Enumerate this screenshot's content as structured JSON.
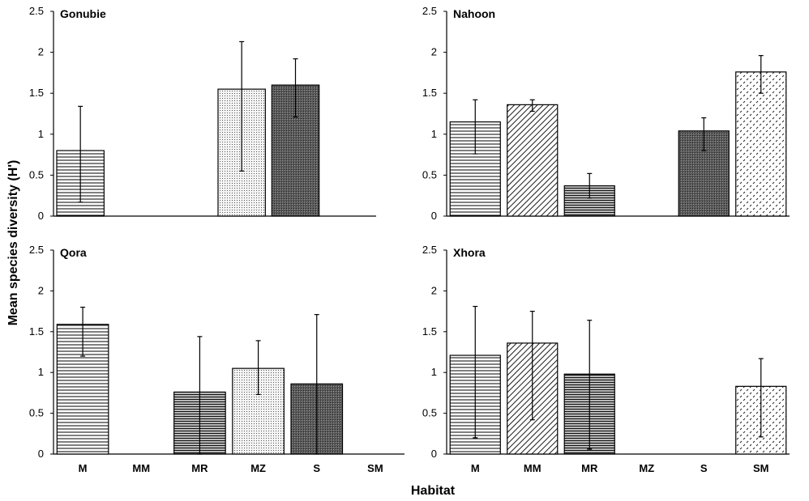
{
  "chart_data": {
    "type": "bar",
    "ylabel": "Mean species diversity (H')",
    "xlabel": "Habitat",
    "categories": [
      "M",
      "MM",
      "MR",
      "MZ",
      "S",
      "SM"
    ],
    "ylim": [
      0,
      2.5
    ],
    "yticks": [
      "0",
      "0.5",
      "1",
      "1.5",
      "2",
      "2.5"
    ],
    "panels": [
      {
        "title": "Gonubie",
        "values": [
          0.8,
          null,
          null,
          1.55,
          1.6,
          null
        ],
        "err_low": [
          0.17,
          null,
          null,
          0.55,
          1.21,
          null
        ],
        "err_high": [
          1.34,
          null,
          null,
          2.13,
          1.92,
          null
        ]
      },
      {
        "title": "Nahoon",
        "values": [
          1.15,
          1.36,
          0.37,
          null,
          1.04,
          1.76
        ],
        "err_low": [
          0.76,
          1.28,
          0.22,
          null,
          0.8,
          1.5
        ],
        "err_high": [
          1.42,
          1.42,
          0.52,
          null,
          1.2,
          1.96
        ]
      },
      {
        "title": "Qora",
        "values": [
          1.59,
          null,
          0.76,
          1.05,
          0.86,
          null
        ],
        "err_low": [
          1.2,
          null,
          0,
          0.73,
          0,
          null
        ],
        "err_high": [
          1.8,
          null,
          1.44,
          1.39,
          1.71,
          null
        ]
      },
      {
        "title": "Xhora",
        "values": [
          1.21,
          1.36,
          0.98,
          null,
          null,
          0.83
        ],
        "err_low": [
          0.2,
          0.42,
          0.06,
          null,
          null,
          0.21
        ],
        "err_high": [
          1.81,
          1.75,
          1.64,
          null,
          null,
          1.17
        ]
      }
    ],
    "habitat_colors": {
      "M": "#ffffff",
      "MM": "#ffffff",
      "MR": "#ffffff",
      "MZ": "#e8e8e8",
      "S": "#6a6a6a",
      "SM": "#ffffff"
    },
    "grid": false,
    "legend": "none"
  }
}
